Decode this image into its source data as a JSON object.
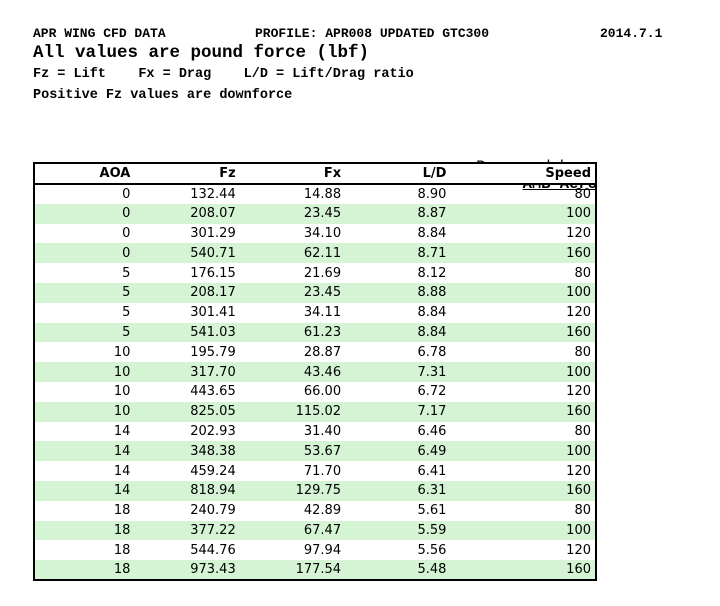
{
  "page": {
    "title_line": {
      "left": "APR WING CFD DATA",
      "middle": "PROFILE: APR008 UPDATED GTC300",
      "right": "2014.7.1"
    },
    "subtitle": "All values are pound force (lbf)",
    "legend_line": "Fz = Lift    Fx = Drag    L/D = Lift/Drag ratio",
    "note_line": "Positive Fz values are downforce",
    "prepared_by": {
      "label": "Prepared by: ",
      "value": "AMB Aero"
    }
  },
  "table": {
    "columns": [
      "AOA",
      "Fz",
      "Fx",
      "L/D",
      "Speed"
    ],
    "rows": [
      [
        "0",
        "132.44",
        "14.88",
        "8.90",
        "80"
      ],
      [
        "0",
        "208.07",
        "23.45",
        "8.87",
        "100"
      ],
      [
        "0",
        "301.29",
        "34.10",
        "8.84",
        "120"
      ],
      [
        "0",
        "540.71",
        "62.11",
        "8.71",
        "160"
      ],
      [
        "5",
        "176.15",
        "21.69",
        "8.12",
        "80"
      ],
      [
        "5",
        "208.17",
        "23.45",
        "8.88",
        "100"
      ],
      [
        "5",
        "301.41",
        "34.11",
        "8.84",
        "120"
      ],
      [
        "5",
        "541.03",
        "61.23",
        "8.84",
        "160"
      ],
      [
        "10",
        "195.79",
        "28.87",
        "6.78",
        "80"
      ],
      [
        "10",
        "317.70",
        "43.46",
        "7.31",
        "100"
      ],
      [
        "10",
        "443.65",
        "66.00",
        "6.72",
        "120"
      ],
      [
        "10",
        "825.05",
        "115.02",
        "7.17",
        "160"
      ],
      [
        "14",
        "202.93",
        "31.40",
        "6.46",
        "80"
      ],
      [
        "14",
        "348.38",
        "53.67",
        "6.49",
        "100"
      ],
      [
        "14",
        "459.24",
        "71.70",
        "6.41",
        "120"
      ],
      [
        "14",
        "818.94",
        "129.75",
        "6.31",
        "160"
      ],
      [
        "18",
        "240.79",
        "42.89",
        "5.61",
        "80"
      ],
      [
        "18",
        "377.22",
        "67.47",
        "5.59",
        "100"
      ],
      [
        "18",
        "544.76",
        "97.94",
        "5.56",
        "120"
      ],
      [
        "18",
        "973.43",
        "177.54",
        "5.48",
        "160"
      ]
    ]
  },
  "colors": {
    "row_highlight": "#d4f4d4",
    "border": "#000000",
    "text": "#000000",
    "background": "#ffffff"
  }
}
